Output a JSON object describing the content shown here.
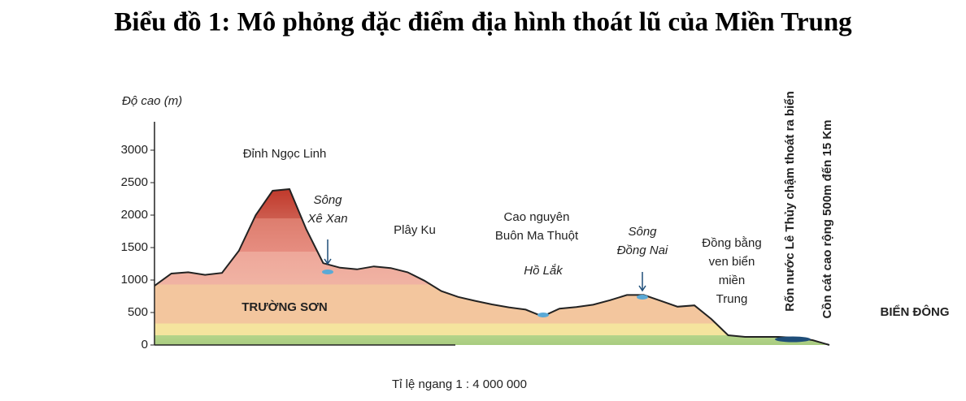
{
  "chart_data": {
    "type": "area",
    "title": "Biểu đồ 1: Mô phỏng đặc điểm địa hình thoát lũ của Miền Trung",
    "y_label": "Độ cao (m)",
    "x_label": "Tỉ lệ ngang 1 : 4 000 000",
    "ylim": [
      0,
      3000
    ],
    "yticks": [
      0,
      500,
      1000,
      1500,
      2000,
      2500,
      3000
    ],
    "categories": [
      null,
      null,
      null,
      null,
      null,
      null,
      null,
      null,
      null,
      null,
      null,
      null,
      null,
      null,
      null,
      null,
      null,
      null,
      null,
      null,
      null,
      null,
      null,
      null,
      null,
      null,
      null,
      null,
      null,
      null,
      null,
      null,
      null,
      null,
      null,
      null,
      null,
      null,
      null,
      null,
      null
    ],
    "values": [
      912,
      1100,
      1120,
      1080,
      1110,
      1450,
      2000,
      2375,
      2400,
      1780,
      1260,
      1190,
      1165,
      1210,
      1185,
      1120,
      990,
      830,
      740,
      680,
      625,
      580,
      545,
      440,
      560,
      585,
      620,
      690,
      770,
      770,
      680,
      590,
      610,
      400,
      150,
      125,
      125,
      125,
      110,
      75,
      0
    ],
    "annotations": [
      {
        "lines": [
          "Đỉnh Ngọc Linh"
        ]
      },
      {
        "lines": [
          "Sông",
          "Xê Xan"
        ]
      },
      {
        "lines": [
          "Plây Ku"
        ]
      },
      {
        "lines": [
          "Cao nguyên",
          "Buôn Ma Thuột"
        ]
      },
      {
        "lines": [
          "Hồ Lắk"
        ]
      },
      {
        "lines": [
          "Sông",
          "Đồng Nai"
        ]
      },
      {
        "lines": [
          "Đồng bằng",
          "ven biển",
          "miền",
          "Trung"
        ]
      },
      {
        "lines": [
          "TRƯỜNG SƠN"
        ]
      },
      {
        "lines": [
          "Rốn nước Lê Thủy chậm thoát ra biển"
        ]
      },
      {
        "lines": [
          "Cồn cát cao rộng 500m đến 15 Km"
        ]
      },
      {
        "lines": [
          "BIỂN ĐÔNG"
        ]
      }
    ]
  }
}
